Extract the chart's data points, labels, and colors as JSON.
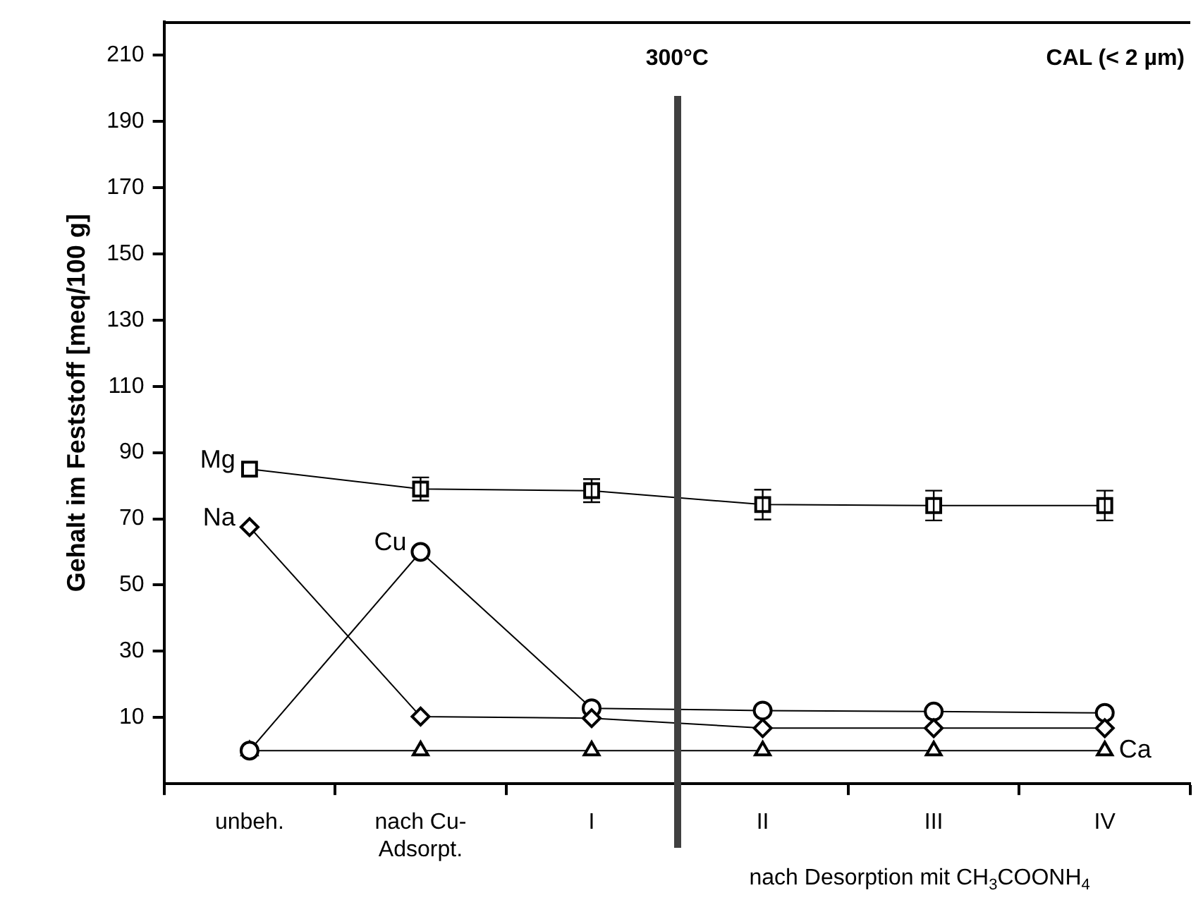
{
  "chart_data": {
    "type": "line",
    "title": "CAL (< 2 µm)",
    "ylabel": "Gehalt im Feststoff [meq/100 g]",
    "categories": [
      "unbeh.",
      "nach Cu-\nAdsorpt.",
      "I",
      "II",
      "III",
      "IV"
    ],
    "series": [
      {
        "name": "Mg",
        "color": "#000000",
        "marker": "square",
        "values": [
          85,
          79,
          78.5,
          74.3,
          74,
          74
        ],
        "errors": [
          null,
          3.5,
          3.5,
          4.5,
          4.5,
          4.5
        ]
      },
      {
        "name": "Na",
        "color": "#000000",
        "marker": "diamond",
        "values": [
          67.5,
          10.3,
          9.8,
          6.8,
          6.8,
          6.8
        ]
      },
      {
        "name": "Cu",
        "color": "#000000",
        "marker": "circle",
        "values": [
          0,
          60,
          12.8,
          12.1,
          11.8,
          11.4
        ]
      },
      {
        "name": "Ca",
        "color": "#000000",
        "marker": "triangle",
        "values": [
          0,
          0,
          0,
          0,
          0,
          0
        ]
      }
    ],
    "ylim": [
      -10,
      220
    ],
    "yticks": [
      10,
      30,
      50,
      70,
      90,
      110,
      130,
      150,
      170,
      190,
      210
    ],
    "grid": false,
    "legend": "left",
    "annotations": [
      "300°C",
      "nach Desorption mit CH$_{3}$COONH$_{4}$"
    ]
  }
}
